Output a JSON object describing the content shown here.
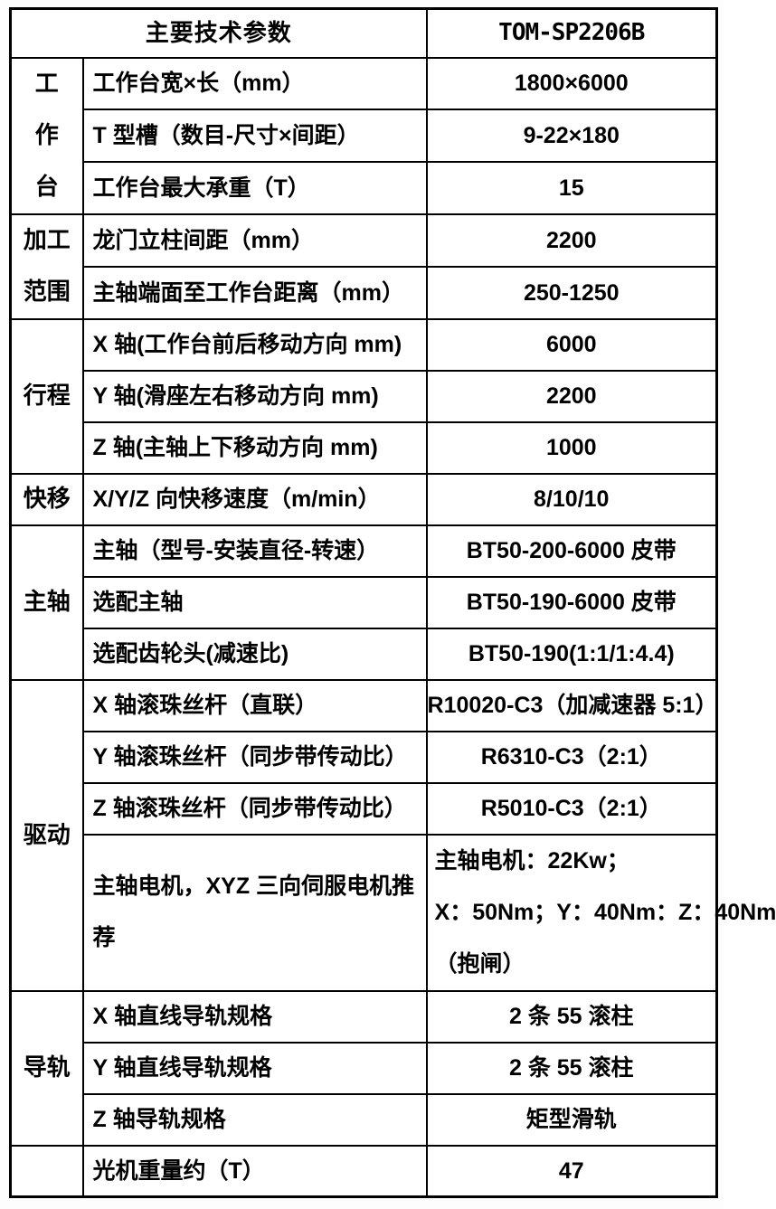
{
  "table": {
    "header": {
      "left": "主要技术参数",
      "right": "TOM-SP2206B"
    },
    "groups": {
      "worktable": {
        "chars": [
          "工",
          "作",
          "台"
        ]
      },
      "range": {
        "lines": [
          "加工",
          "范围"
        ]
      },
      "travel": "行程",
      "rapid": "快移",
      "spindle": "主轴",
      "drive": "驱动",
      "guideway": "导轨",
      "last": ""
    },
    "rows": [
      {
        "label": "工作台宽×长（mm）",
        "value": "1800×6000"
      },
      {
        "label": "T 型槽（数目-尺寸×间距）",
        "value": "9-22×180"
      },
      {
        "label": "工作台最大承重（T）",
        "value": "15"
      },
      {
        "label": "龙门立柱间距（mm）",
        "value": "2200"
      },
      {
        "label": "主轴端面至工作台距离（mm）",
        "value": "250-1250"
      },
      {
        "label": "X 轴(工作台前后移动方向 mm)",
        "value": "6000"
      },
      {
        "label": "Y 轴(滑座左右移动方向 mm)",
        "value": "2200"
      },
      {
        "label": "Z 轴(主轴上下移动方向 mm)",
        "value": "1000"
      },
      {
        "label": "X/Y/Z 向快移速度（m/min）",
        "value": "8/10/10"
      },
      {
        "label": "主轴（型号-安装直径-转速）",
        "value": "BT50-200-6000 皮带"
      },
      {
        "label": "选配主轴",
        "value": "BT50-190-6000 皮带"
      },
      {
        "label": "选配齿轮头(减速比)",
        "value": "BT50-190(1:1/1:4.4)"
      },
      {
        "label": "X 轴滚珠丝杆（直联）",
        "value": "R10020-C3（加减速器 5:1）"
      },
      {
        "label": "Y 轴滚珠丝杆（同步带传动比）",
        "value": "R6310-C3（2:1）"
      },
      {
        "label": "Z 轴滚珠丝杆（同步带传动比）",
        "value": "R5010-C3（2:1）"
      },
      {
        "label": "主轴电机，XYZ 三向伺服电机推荐",
        "value_lines": [
          "主轴电机：22Kw；",
          "X：50Nm；Y：40Nm：Z：40Nm",
          "（抱闸）"
        ]
      },
      {
        "label": "X 轴直线导轨规格",
        "value": "2 条 55 滚柱"
      },
      {
        "label": "Y 轴直线导轨规格",
        "value": "2 条 55 滚柱"
      },
      {
        "label": "Z 轴导轨规格",
        "value": "矩型滑轨"
      },
      {
        "label": "光机重量约（T）",
        "value": "47"
      }
    ],
    "colors": {
      "border": "#000000",
      "text": "#000000",
      "background": "#ffffff"
    }
  }
}
